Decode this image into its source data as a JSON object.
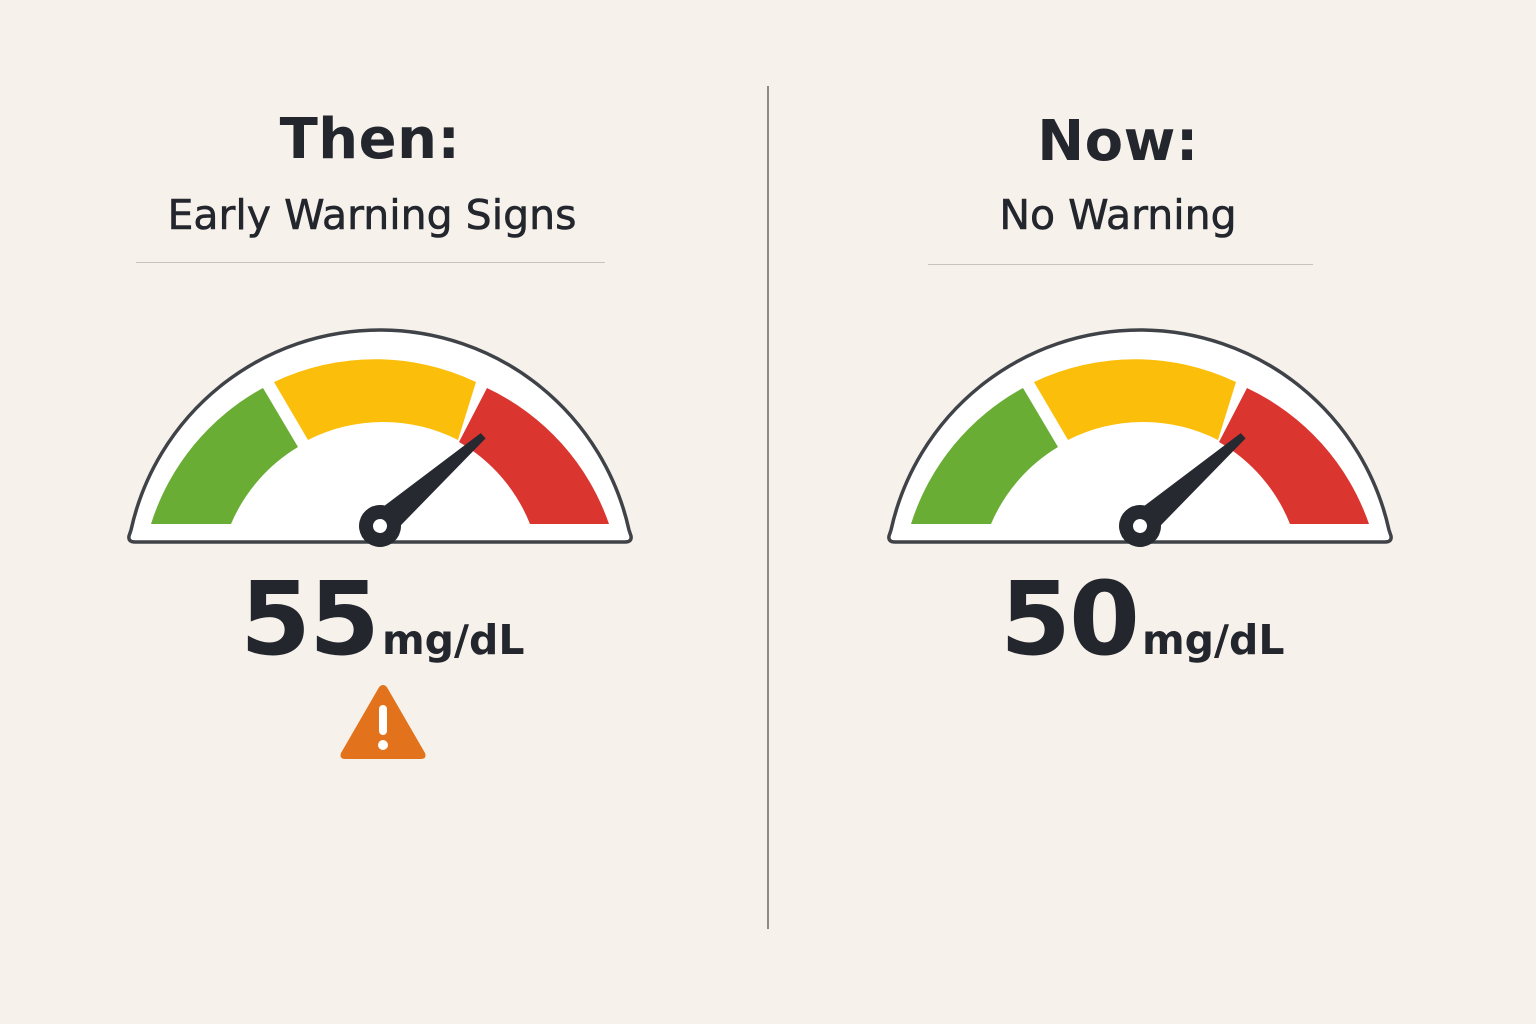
{
  "panels": {
    "left": {
      "title": "Then:",
      "subtitle": "Early Warning Signs",
      "reading": {
        "value": "55",
        "unit": "mg/dL"
      },
      "needle_value": 0.75,
      "warning_icon": "warning-triangle-icon",
      "warning_color": "#e2721b"
    },
    "right": {
      "title": "Now:",
      "subtitle": "No Warning",
      "reading": {
        "value": "50",
        "unit": "mg/dL"
      },
      "needle_value": 0.75
    }
  },
  "gauge_colors": {
    "green": "#6aad35",
    "yellow": "#fbbe0b",
    "red": "#db3530",
    "outline": "#3f4247",
    "needle": "#262a30"
  }
}
